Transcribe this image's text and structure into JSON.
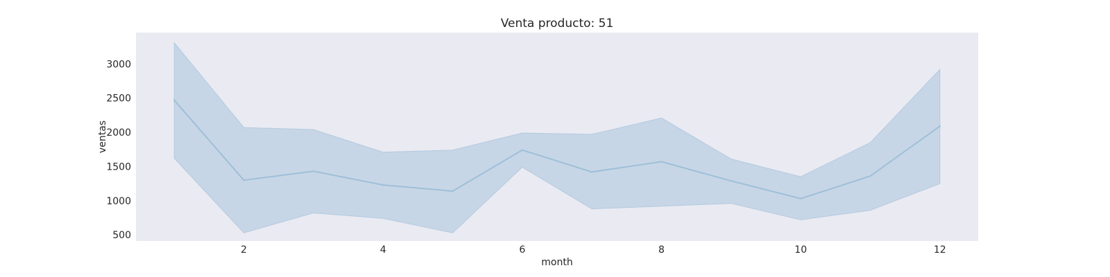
{
  "chart_data": {
    "type": "line",
    "title": "Venta producto: 51",
    "xlabel": "month",
    "ylabel": "ventas",
    "xlim": [
      0.45,
      12.55
    ],
    "ylim": [
      410,
      3460
    ],
    "x_ticks": [
      2,
      4,
      6,
      8,
      10,
      12
    ],
    "y_ticks": [
      500,
      1000,
      1500,
      2000,
      2500,
      3000
    ],
    "grid": false,
    "x": [
      1,
      2,
      3,
      4,
      5,
      6,
      7,
      8,
      9,
      10,
      11,
      12
    ],
    "series": [
      {
        "values": [
          2470,
          1300,
          1430,
          1230,
          1140,
          1740,
          1420,
          1570,
          1290,
          1030,
          1360,
          2090
        ],
        "lower": [
          1620,
          530,
          820,
          740,
          530,
          1490,
          880,
          920,
          960,
          720,
          860,
          1250
        ],
        "upper": [
          3310,
          2070,
          2040,
          1710,
          1740,
          1990,
          1970,
          2210,
          1610,
          1350,
          1850,
          2920
        ]
      }
    ],
    "colors": {
      "plot_background": "#eaeaf2",
      "band_fill": "#a9c4dd",
      "line": "#9ebfd9"
    }
  }
}
